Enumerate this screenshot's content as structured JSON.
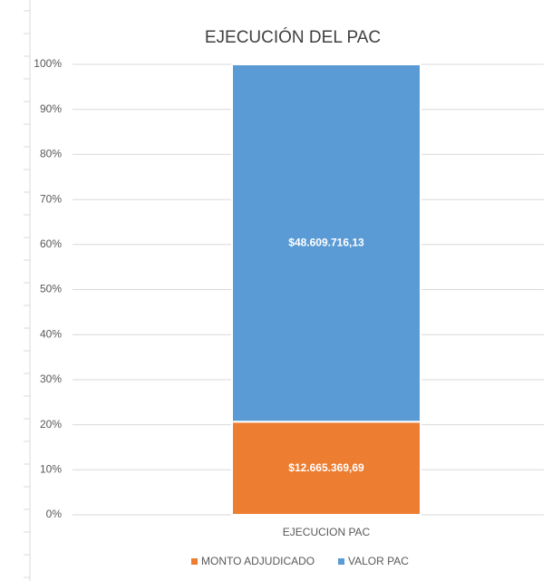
{
  "chart_data": {
    "type": "stacked_percent_bar",
    "title": "EJECUCIÓN DEL PAC",
    "categories": [
      "EJECUCION PAC"
    ],
    "series": [
      {
        "name": "MONTO ADJUDICADO",
        "color": "#ed7d31",
        "values": [
          12665369.69
        ],
        "value_labels": [
          "$12.665.369,69"
        ]
      },
      {
        "name": "VALOR PAC",
        "color": "#5b9bd5",
        "values": [
          48609716.13
        ],
        "value_labels": [
          "$48.609.716,13"
        ]
      }
    ],
    "ylim": [
      0,
      100
    ],
    "yticks": [
      {
        "value": 0,
        "label": "0%"
      },
      {
        "value": 10,
        "label": "10%"
      },
      {
        "value": 20,
        "label": "20%"
      },
      {
        "value": 30,
        "label": "30%"
      },
      {
        "value": 40,
        "label": "40%"
      },
      {
        "value": 50,
        "label": "50%"
      },
      {
        "value": 60,
        "label": "60%"
      },
      {
        "value": 70,
        "label": "70%"
      },
      {
        "value": 80,
        "label": "80%"
      },
      {
        "value": 90,
        "label": "90%"
      },
      {
        "value": 100,
        "label": "100%"
      }
    ],
    "grid": true,
    "legend": "bottom"
  }
}
